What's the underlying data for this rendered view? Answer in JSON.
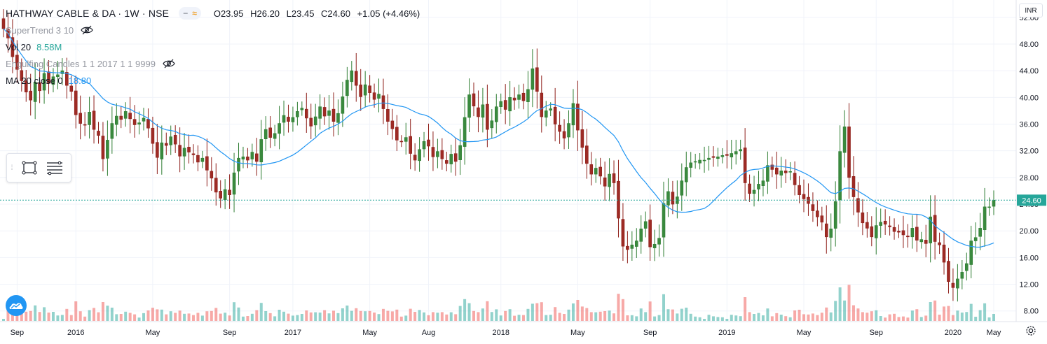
{
  "header": {
    "title": "HATHWAY CABLE & DA · 1W · NSE",
    "ohlc": {
      "open": "O23.95",
      "high": "H26.20",
      "low": "L23.45",
      "close": "C24.60",
      "change": "+1.05 (+4.46%)"
    }
  },
  "indicators": [
    {
      "name": "SuperTrend 3 10",
      "value": "",
      "hidden": true
    },
    {
      "name": "Vol 20",
      "value": "8.58M",
      "hidden": false
    },
    {
      "name": "Engulfing Candles 1 1 2017 1 1 9999",
      "value": "",
      "hidden": true
    },
    {
      "name": "MA 20 close 0",
      "value": "18.80",
      "hidden": false
    }
  ],
  "price_axis": {
    "currency": "INR",
    "last_price_label": "24.60"
  },
  "colors": {
    "up": "#26a69a",
    "down": "#ef5350",
    "ma": "#2196f3",
    "last_price": "#26a69a",
    "grid": "#f0f3fa",
    "candle_body_down": "#9e2b25",
    "candle_body_up": "#3a8a3e"
  },
  "icons": {
    "toolbar": [
      "drag-handle-icon",
      "rectangle-tool-icon",
      "lines-tool-icon"
    ],
    "logo": "tradingview-cloud-icon",
    "settings": "gear-icon"
  },
  "chart_data": {
    "type": "candlestick",
    "interval": "1W",
    "ylim": [
      6.4,
      54.6
    ],
    "y_ticks": [
      "52.00",
      "48.00",
      "44.00",
      "40.00",
      "36.00",
      "32.00",
      "28.00",
      "24.00",
      "20.00",
      "16.00",
      "12.00",
      "8.00"
    ],
    "x_ticks": [
      "Sep",
      "2016",
      "May",
      "Sep",
      "2017",
      "May",
      "Aug",
      "2018",
      "May",
      "Sep",
      "2019",
      "May",
      "Sep",
      "2020",
      "May"
    ],
    "last_price": 24.6,
    "close_series": [
      50.3,
      48.9,
      46.1,
      44.2,
      42.5,
      40.8,
      39.6,
      42.3,
      41.0,
      43.6,
      42.1,
      43.1,
      43.4,
      44.0,
      41.8,
      40.9,
      37.4,
      36.1,
      35.9,
      37.8,
      35.2,
      34.3,
      30.8,
      33.6,
      36.1,
      37.2,
      36.7,
      37.9,
      36.8,
      35.9,
      36.2,
      36.9,
      35.4,
      33.1,
      31.0,
      33.2,
      32.8,
      34.1,
      33.0,
      31.2,
      32.4,
      31.8,
      31.4,
      30.3,
      30.9,
      29.1,
      27.9,
      25.8,
      24.9,
      26.2,
      25.4,
      28.7,
      30.9,
      31.1,
      30.6,
      31.8,
      30.4,
      33.7,
      35.2,
      34.0,
      34.6,
      36.1,
      37.3,
      36.4,
      37.0,
      37.9,
      38.4,
      36.9,
      35.7,
      37.1,
      38.6,
      37.2,
      38.0,
      36.4,
      37.6,
      40.1,
      42.6,
      44.0,
      41.8,
      40.1,
      41.9,
      40.7,
      39.7,
      40.5,
      38.3,
      36.4,
      35.3,
      33.6,
      33.4,
      34.0,
      31.6,
      30.6,
      32.2,
      33.4,
      32.7,
      31.1,
      31.9,
      30.8,
      30.1,
      31.5,
      30.4,
      32.8,
      37.0,
      40.4,
      38.7,
      37.1,
      38.9,
      35.2,
      36.5,
      38.6,
      39.4,
      38.2,
      40.0,
      39.6,
      40.4,
      39.5,
      41.2,
      44.3,
      40.9,
      37.1,
      38.0,
      38.3,
      36.0,
      34.9,
      33.9,
      36.1,
      39.1,
      35.1,
      32.5,
      30.1,
      28.5,
      29.4,
      28.2,
      26.7,
      28.5,
      27.2,
      21.9,
      17.7,
      17.2,
      17.9,
      18.5,
      20.3,
      21.4,
      17.6,
      18.0,
      18.9,
      24.1,
      25.9,
      24.0,
      25.1,
      27.5,
      29.5,
      30.2,
      30.4,
      30.6,
      30.6,
      30.9,
      31.0,
      31.1,
      31.3,
      31.3,
      31.6,
      31.9,
      32.2,
      27.2,
      25.6,
      26.1,
      27.0,
      27.5,
      29.8,
      29.2,
      28.5,
      29.0,
      28.7,
      28.9,
      26.9,
      25.4,
      24.8,
      24.1,
      23.0,
      22.1,
      21.3,
      19.1,
      20.3,
      24.4,
      31.9,
      35.6,
      28.0,
      25.1,
      22.8,
      21.2,
      20.4,
      19.1,
      20.8,
      21.3,
      21.0,
      20.6,
      19.9,
      19.8,
      19.4,
      19.1,
      20.4,
      18.6,
      18.7,
      18.1,
      22.1,
      18.4,
      17.9,
      15.3,
      12.4,
      11.5,
      12.8,
      13.8,
      15.1,
      18.5,
      19.0,
      20.4,
      23.6,
      23.6,
      24.6
    ],
    "ma_label": "MA 20 close",
    "volume_scale_note": "relative"
  }
}
